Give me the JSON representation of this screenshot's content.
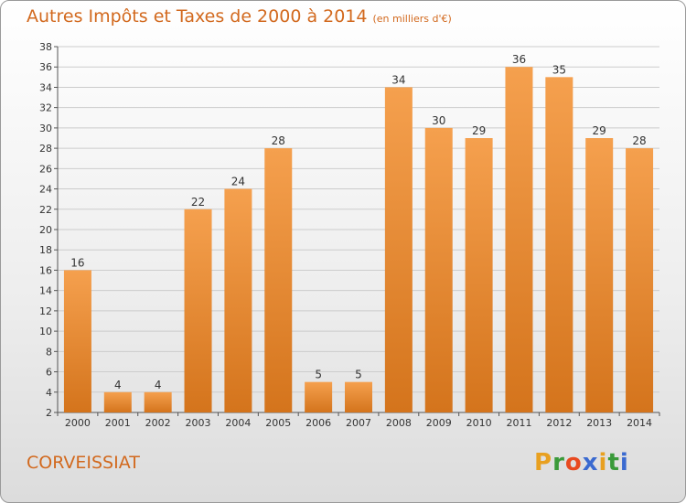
{
  "title": "Autres Impôts et Taxes de 2000 à 2014",
  "unit_note": "(en milliers d'€)",
  "commune": "CORVEISSIAT",
  "logo": {
    "text": "Proxiti",
    "colors": [
      "#e8a020",
      "#3a9a3a",
      "#e84a20",
      "#3a6ad0",
      "#e8a020",
      "#3a9a3a",
      "#3a6ad0"
    ]
  },
  "colors": {
    "bar_light": "#f5a04e",
    "bar_dark": "#d4741c",
    "text_accent": "#d2691e",
    "grid": "#cccccc"
  },
  "chart_data": {
    "type": "bar",
    "categories": [
      "2000",
      "2001",
      "2002",
      "2003",
      "2004",
      "2005",
      "2006",
      "2007",
      "2008",
      "2009",
      "2010",
      "2011",
      "2012",
      "2013",
      "2014"
    ],
    "values": [
      16,
      4,
      4,
      22,
      24,
      28,
      5,
      5,
      34,
      30,
      29,
      36,
      35,
      29,
      28
    ],
    "ylim": [
      2,
      38
    ],
    "yticks": [
      2,
      4,
      6,
      8,
      10,
      12,
      14,
      16,
      18,
      20,
      22,
      24,
      26,
      28,
      30,
      32,
      34,
      36,
      38
    ],
    "grid": true,
    "data_labels": true
  }
}
